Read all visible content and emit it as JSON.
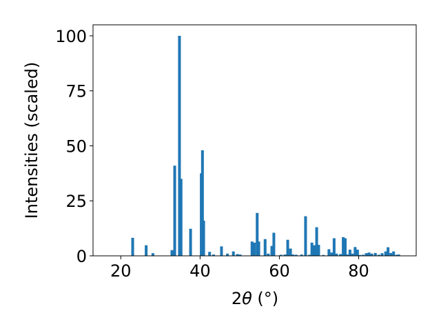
{
  "chart_data": {
    "type": "bar",
    "title": "",
    "xlabel_prefix": "2",
    "xlabel_symbol": "θ",
    "xlabel_suffix": " (°)",
    "ylabel": "Intensities (scaled)",
    "xlim": [
      13,
      94.5
    ],
    "ylim": [
      0,
      105
    ],
    "xticks": [
      20,
      40,
      60,
      80
    ],
    "yticks": [
      0,
      25,
      50,
      75,
      100
    ],
    "bar_width_deg": 0.7,
    "bar_color": "#1f77b4",
    "grid": false,
    "legend": "none",
    "x": [
      23.0,
      26.4,
      28.1,
      32.9,
      33.6,
      34.8,
      35.2,
      37.6,
      40.3,
      40.6,
      40.9,
      42.4,
      43.4,
      45.4,
      46.9,
      48.4,
      49.4,
      50.1,
      53.1,
      53.7,
      54.4,
      54.8,
      56.4,
      57.2,
      58.1,
      58.6,
      60.4,
      61.4,
      62.1,
      62.8,
      63.4,
      64.2,
      65.6,
      66.6,
      67.6,
      68.2,
      68.8,
      69.4,
      69.9,
      71.1,
      72.5,
      73.2,
      73.8,
      74.4,
      75.4,
      76.1,
      76.6,
      77.2,
      77.8,
      78.4,
      79.1,
      79.7,
      80.3,
      81.1,
      81.9,
      82.6,
      83.3,
      84.2,
      85.1,
      85.9,
      86.8,
      87.4,
      88.1,
      88.8,
      89.6,
      90.1
    ],
    "values": [
      8.2,
      4.8,
      1.2,
      2.6,
      41,
      100,
      35,
      12.3,
      37.5,
      48,
      16,
      1.8,
      0.6,
      4.3,
      1.0,
      2.0,
      0.8,
      0.6,
      6.5,
      6.0,
      19.5,
      6.5,
      7.6,
      1.0,
      4.5,
      10.5,
      0.5,
      0.6,
      7.3,
      3.3,
      0.6,
      0.5,
      0.6,
      18,
      0.5,
      6.0,
      4.8,
      13,
      5.0,
      0.4,
      3.0,
      1.5,
      8.0,
      1.0,
      0.8,
      8.5,
      8.0,
      0.6,
      2.8,
      1.0,
      4.0,
      2.8,
      0.4,
      0.5,
      1.2,
      1.5,
      1.0,
      1.3,
      0.5,
      1.2,
      2.0,
      3.9,
      1.3,
      2.0,
      0.5,
      0.6
    ]
  }
}
